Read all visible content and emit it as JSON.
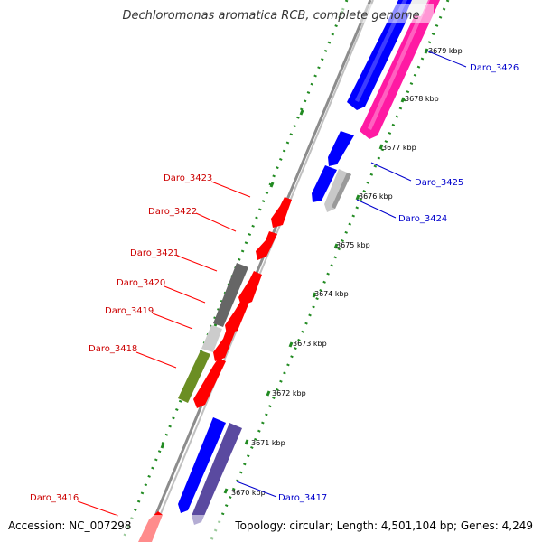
{
  "title": "Dechloromonas aromatica RCB, complete genome",
  "footer": {
    "accession": "Accession: NC_007298",
    "summary": "Topology: circular; Length: 4,501,104 bp; Genes: 4,249"
  },
  "colors": {
    "forward_label": "#cc0000",
    "reverse_label": "#0000cc",
    "tick": "#228B22",
    "backbone": "#909090"
  },
  "ticks": [
    {
      "label": "3679 kbp",
      "kbp": 3679
    },
    {
      "label": "3678 kbp",
      "kbp": 3678
    },
    {
      "label": "3677 kbp",
      "kbp": 3677
    },
    {
      "label": "3676 kbp",
      "kbp": 3676
    },
    {
      "label": "3675 kbp",
      "kbp": 3675
    },
    {
      "label": "3674 kbp",
      "kbp": 3674
    },
    {
      "label": "3673 kbp",
      "kbp": 3673
    },
    {
      "label": "3672 kbp",
      "kbp": 3672
    },
    {
      "label": "3671 kbp",
      "kbp": 3671
    },
    {
      "label": "3670 kbp",
      "kbp": 3670
    }
  ],
  "gene_labels": [
    {
      "id": "Daro_3426",
      "text": "Daro_3426",
      "strand": "reverse"
    },
    {
      "id": "Daro_3425",
      "text": "Daro_3425",
      "strand": "reverse"
    },
    {
      "id": "Daro_3424",
      "text": "Daro_3424",
      "strand": "reverse"
    },
    {
      "id": "Daro_3423",
      "text": "Daro_3423",
      "strand": "forward"
    },
    {
      "id": "Daro_3422",
      "text": "Daro_3422",
      "strand": "forward"
    },
    {
      "id": "Daro_3421",
      "text": "Daro_3421",
      "strand": "forward"
    },
    {
      "id": "Daro_3420",
      "text": "Daro_3420",
      "strand": "forward"
    },
    {
      "id": "Daro_3419",
      "text": "Daro_3419",
      "strand": "forward"
    },
    {
      "id": "Daro_3418",
      "text": "Daro_3418",
      "strand": "forward"
    },
    {
      "id": "Daro_3417",
      "text": "Daro_3417",
      "strand": "reverse"
    },
    {
      "id": "Daro_3416",
      "text": "Daro_3416",
      "strand": "forward"
    }
  ]
}
